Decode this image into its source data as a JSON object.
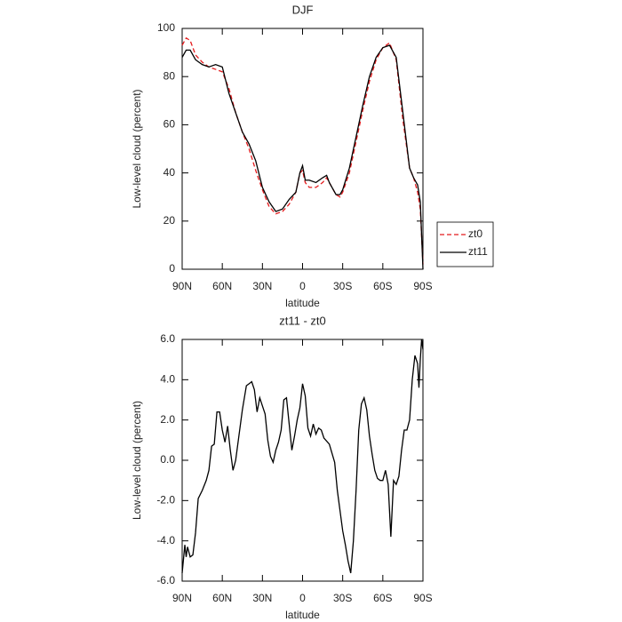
{
  "chart_data": [
    {
      "type": "line",
      "title": "DJF",
      "xlabel": "latitude",
      "ylabel": "Low-level cloud (percent)",
      "xlim": [
        90,
        -90
      ],
      "xticks": [
        {
          "value": 90,
          "label": "90N"
        },
        {
          "value": 60,
          "label": "60N"
        },
        {
          "value": 30,
          "label": "30N"
        },
        0,
        {
          "value": -30,
          "label": "30S"
        },
        {
          "value": -60,
          "label": "60S"
        },
        {
          "value": -90,
          "label": "90S"
        }
      ],
      "ylim": [
        0,
        100
      ],
      "yticks": [
        0,
        20,
        40,
        60,
        80,
        100
      ],
      "legend": "right",
      "x": [
        90,
        87,
        84,
        80,
        75,
        70,
        65,
        60,
        55,
        50,
        45,
        40,
        35,
        30,
        25,
        20,
        15,
        10,
        5,
        2,
        0,
        -2,
        -5,
        -10,
        -15,
        -18,
        -20,
        -25,
        -28,
        -30,
        -35,
        -40,
        -45,
        -50,
        -55,
        -60,
        -65,
        -70,
        -75,
        -80,
        -83,
        -86,
        -88,
        -90
      ],
      "series": [
        {
          "name": "zt0",
          "color": "#e41a1c",
          "dash": true,
          "values": [
            93,
            96,
            95,
            89,
            86,
            84,
            83,
            82,
            75,
            65,
            57,
            50,
            41,
            33,
            26,
            23,
            24,
            27,
            32,
            40,
            41,
            36,
            34,
            34,
            36,
            38,
            36,
            31,
            30,
            32,
            40,
            53,
            66,
            78,
            87,
            92,
            94,
            87,
            62,
            42,
            38,
            32,
            25,
            2
          ]
        },
        {
          "name": "zt11",
          "color": "#000000",
          "values": [
            88,
            91,
            91,
            87,
            85,
            84,
            85,
            84,
            73,
            65,
            57,
            52,
            45,
            34,
            28,
            24,
            25,
            29,
            32,
            40,
            43,
            37,
            37,
            36,
            38,
            39,
            36,
            31,
            31,
            33,
            42,
            55,
            68,
            80,
            88,
            92,
            93,
            88,
            65,
            42,
            38,
            35,
            28,
            0
          ]
        }
      ]
    },
    {
      "type": "line",
      "title": "zt11 - zt0",
      "xlabel": "latitude",
      "ylabel": "Low-level cloud (percent)",
      "xlim": [
        90,
        -90
      ],
      "xticks": [
        {
          "value": 90,
          "label": "90N"
        },
        {
          "value": 60,
          "label": "60N"
        },
        {
          "value": 30,
          "label": "30N"
        },
        0,
        {
          "value": -30,
          "label": "30S"
        },
        {
          "value": -60,
          "label": "60S"
        },
        {
          "value": -90,
          "label": "90S"
        }
      ],
      "ylim": [
        -6,
        6
      ],
      "yticks": [
        {
          "value": -6,
          "label": "-6.0"
        },
        {
          "value": -4,
          "label": "-4.0"
        },
        {
          "value": -2,
          "label": "-2.0"
        },
        {
          "value": 0,
          "label": "0.0"
        },
        {
          "value": 2,
          "label": "2.0"
        },
        {
          "value": 4,
          "label": "4.0"
        },
        {
          "value": 6,
          "label": "6.0"
        }
      ],
      "color": "#000000",
      "x": [
        90,
        88,
        87,
        86,
        84,
        82,
        80,
        78,
        75,
        72,
        70,
        68,
        66,
        64,
        62,
        60,
        58,
        56,
        54,
        52,
        50,
        48,
        45,
        42,
        40,
        38,
        36,
        34,
        32,
        30,
        28,
        26,
        24,
        22,
        20,
        18,
        16,
        14,
        12,
        10,
        8,
        6,
        4,
        2,
        0,
        -2,
        -4,
        -6,
        -8,
        -10,
        -12,
        -14,
        -16,
        -20,
        -24,
        -26,
        -28,
        -30,
        -32,
        -34,
        -36,
        -38,
        -40,
        -42,
        -44,
        -46,
        -48,
        -50,
        -52,
        -54,
        -56,
        -58,
        -60,
        -62,
        -64,
        -66,
        -68,
        -70,
        -72,
        -74,
        -76,
        -78,
        -80,
        -82,
        -84,
        -86,
        -87,
        -88,
        -89,
        -90
      ],
      "values": [
        -5.6,
        -4.2,
        -4.8,
        -4.3,
        -4.8,
        -4.7,
        -3.6,
        -1.9,
        -1.5,
        -1.0,
        -0.5,
        0.7,
        0.8,
        2.4,
        2.4,
        1.5,
        0.9,
        1.7,
        0.5,
        -0.5,
        0.0,
        1.0,
        2.5,
        3.7,
        3.8,
        3.9,
        3.5,
        2.4,
        3.1,
        2.7,
        2.3,
        1.0,
        0.2,
        -0.1,
        0.5,
        0.9,
        1.5,
        3.0,
        3.1,
        1.8,
        0.5,
        1.2,
        2.0,
        2.6,
        3.8,
        3.2,
        1.6,
        1.2,
        1.8,
        1.3,
        1.6,
        1.5,
        1.1,
        0.8,
        -0.1,
        -1.5,
        -2.5,
        -3.5,
        -4.2,
        -5.0,
        -5.6,
        -4.0,
        -1.5,
        1.5,
        2.8,
        3.1,
        2.5,
        1.2,
        0.3,
        -0.5,
        -0.9,
        -1.0,
        -1.0,
        -0.5,
        -1.2,
        -3.8,
        -1.0,
        -1.2,
        -0.8,
        0.5,
        1.5,
        1.5,
        2.0,
        4.0,
        5.2,
        4.8,
        3.6,
        5.0,
        6.0,
        5.5
      ]
    }
  ]
}
